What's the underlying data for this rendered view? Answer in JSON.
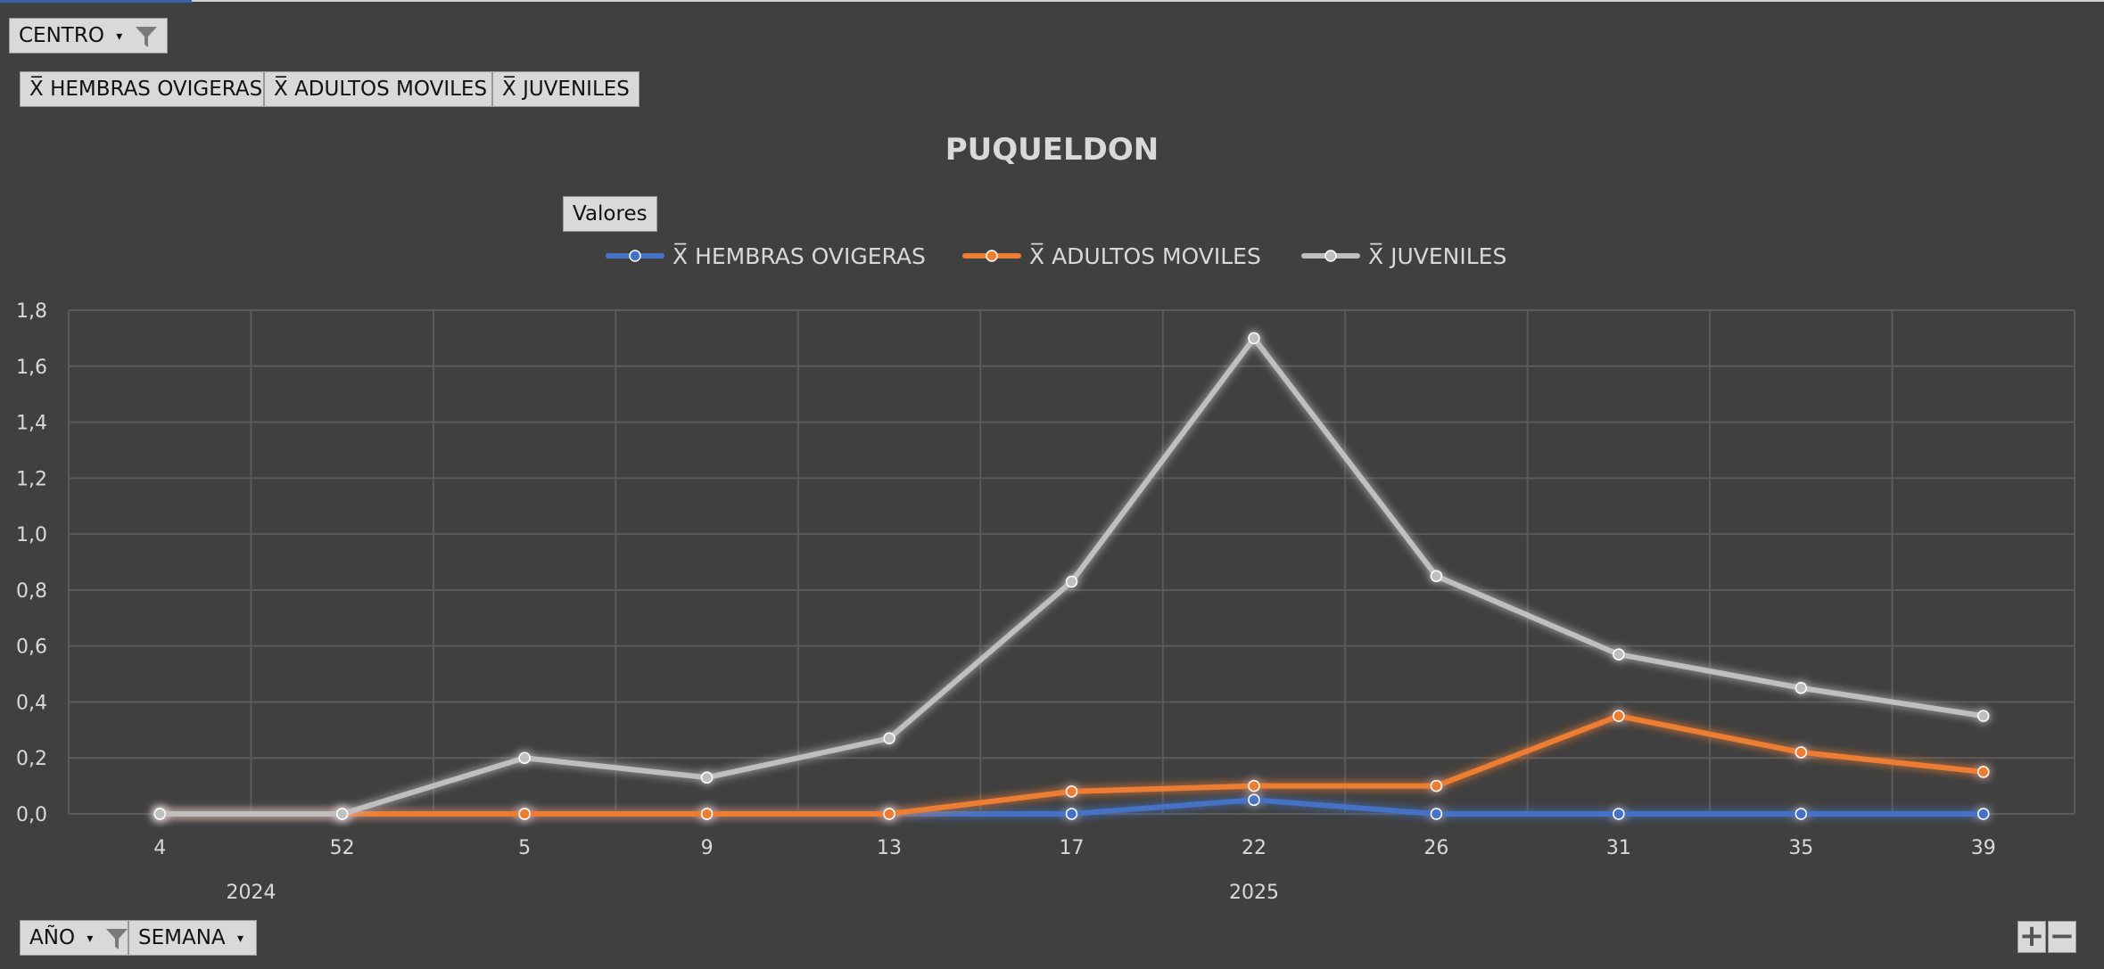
{
  "filters": {
    "centro_label": "CENTRO",
    "ano_label": "AÑO",
    "semana_label": "SEMANA"
  },
  "value_fields": [
    "X̅ HEMBRAS OVIGERAS",
    "X̅ ADULTOS MOVILES",
    "X̅ JUVENILES"
  ],
  "legend_header": "Valores",
  "zoom": {
    "expand": "+",
    "collapse": "−"
  },
  "colors": {
    "background": "#404040",
    "hembras": "#4472c4",
    "adultos": "#ed7d31",
    "juveniles": "#bfbfbf"
  },
  "chart_data": {
    "type": "line",
    "title": "PUQUELDON",
    "categories": [
      "4",
      "52",
      "5",
      "9",
      "13",
      "17",
      "22",
      "26",
      "31",
      "35",
      "39"
    ],
    "year_groups": [
      {
        "label": "2024",
        "from": 0,
        "to": 1
      },
      {
        "label": "2025",
        "from": 2,
        "to": 10
      }
    ],
    "series": [
      {
        "name": "X̅ HEMBRAS OVIGERAS",
        "color": "#4472c4",
        "values": [
          0,
          0,
          0,
          0,
          0,
          0,
          0.05,
          0,
          0,
          0,
          0
        ]
      },
      {
        "name": "X̅ ADULTOS MOVILES",
        "color": "#ed7d31",
        "values": [
          0,
          0,
          0,
          0,
          0,
          0.08,
          0.1,
          0.1,
          0.35,
          0.22,
          0.15
        ]
      },
      {
        "name": "X̅ JUVENILES",
        "color": "#bfbfbf",
        "values": [
          0,
          0,
          0.2,
          0.13,
          0.27,
          0.83,
          1.7,
          0.85,
          0.57,
          0.45,
          0.35
        ]
      }
    ],
    "ylim": [
      0,
      1.8
    ],
    "yticks": [
      "0,0",
      "0,2",
      "0,4",
      "0,6",
      "0,8",
      "1,0",
      "1,2",
      "1,4",
      "1,6",
      "1,8"
    ],
    "grid": true,
    "legend_position": "top"
  }
}
